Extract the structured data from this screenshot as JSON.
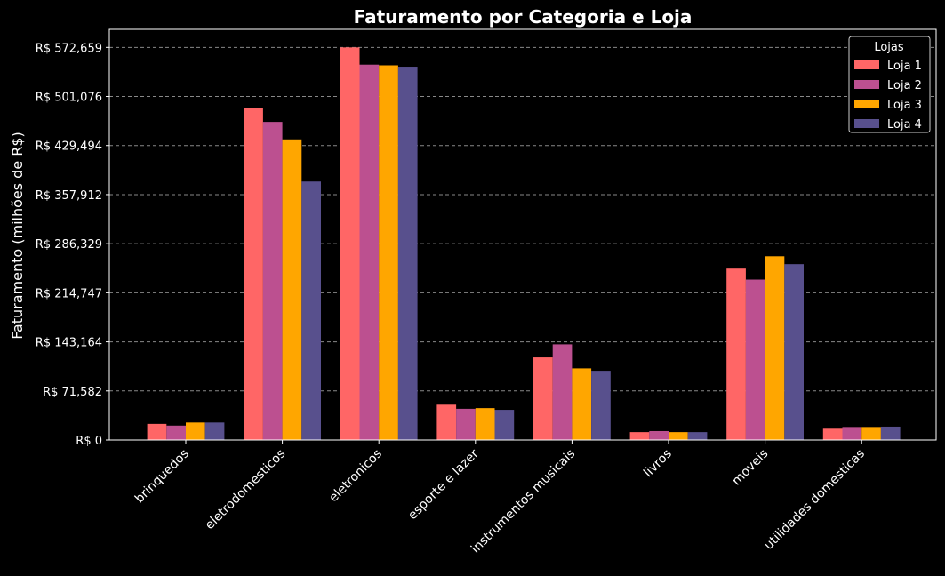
{
  "chart_data": {
    "type": "bar",
    "title": "Faturamento por Categoria e Loja",
    "xlabel": "",
    "ylabel": "Faturamento (milhões de R$)",
    "categories": [
      "brinquedos",
      "eletrodomesticos",
      "eletronicos",
      "esporte e lazer",
      "instrumentos musicais",
      "livros",
      "moveis",
      "utilidades domesticas"
    ],
    "series": [
      {
        "name": "Loja 1",
        "color": "#ff6666",
        "values": [
          23500,
          484000,
          572659,
          51500,
          120500,
          11500,
          250000,
          16500
        ]
      },
      {
        "name": "Loja 2",
        "color": "#bc5090",
        "values": [
          21000,
          464000,
          547500,
          45500,
          139500,
          13000,
          234000,
          19000
        ]
      },
      {
        "name": "Loja 3",
        "color": "#ffa600",
        "values": [
          25500,
          438500,
          546500,
          46500,
          104500,
          11500,
          268000,
          19000
        ]
      },
      {
        "name": "Loja 4",
        "color": "#58508d",
        "values": [
          25500,
          377000,
          544500,
          44000,
          101000,
          11500,
          256500,
          19500
        ]
      }
    ],
    "ylim": [
      0,
      599000
    ],
    "yticks": [
      0,
      71582,
      143164,
      214747,
      286329,
      357912,
      429494,
      501076,
      572659
    ],
    "ytick_labels": [
      "R$ 0",
      "R$ 71,582",
      "R$ 143,164",
      "R$ 214,747",
      "R$ 286,329",
      "R$ 357,912",
      "R$ 429,494",
      "R$ 501,076",
      "R$ 572,659"
    ],
    "grid": "horizontal dashed",
    "legend": {
      "title": "Lojas",
      "placement": "top-right"
    },
    "background": "#000000",
    "text_color": "#ffffff"
  }
}
